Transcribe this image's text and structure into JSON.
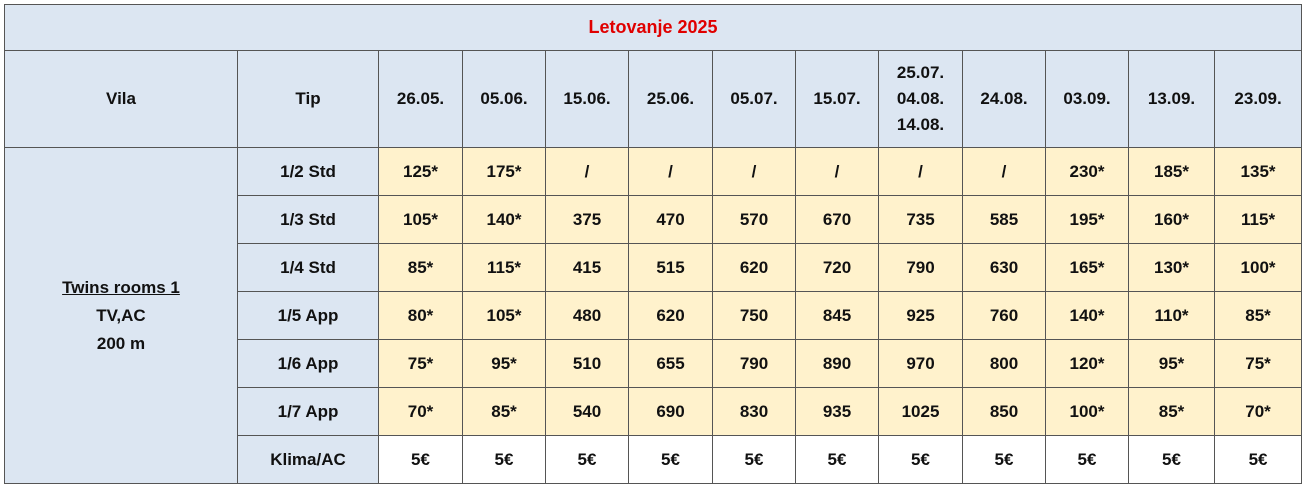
{
  "header": {
    "title": "Letovanje 2025"
  },
  "table": {
    "columns": [
      "Vila",
      "Tip",
      "26.05.",
      "05.06.",
      "15.06.",
      "25.06.",
      "05.07.",
      "15.07.",
      [
        "25.07.",
        "04.08.",
        "14.08."
      ],
      "24.08.",
      "03.09.",
      "13.09.",
      "23.09."
    ],
    "vila": [
      "Twins rooms 1",
      "TV,AC",
      "200 m"
    ],
    "rows": [
      [
        "1/2 Std",
        "125*",
        "175*",
        "/",
        "/",
        "/",
        "/",
        "/",
        "/",
        "230*",
        "185*",
        "135*"
      ],
      [
        "1/3 Std",
        "105*",
        "140*",
        "375",
        "470",
        "570",
        "670",
        "735",
        "585",
        "195*",
        "160*",
        "115*"
      ],
      [
        "1/4 Std",
        "85*",
        "115*",
        "415",
        "515",
        "620",
        "720",
        "790",
        "630",
        "165*",
        "130*",
        "100*"
      ],
      [
        "1/5 App",
        "80*",
        "105*",
        "480",
        "620",
        "750",
        "845",
        "925",
        "760",
        "140*",
        "110*",
        "85*"
      ],
      [
        "1/6 App",
        "75*",
        "95*",
        "510",
        "655",
        "790",
        "890",
        "970",
        "800",
        "120*",
        "95*",
        "75*"
      ],
      [
        "1/7 App",
        "70*",
        "85*",
        "540",
        "690",
        "830",
        "935",
        "1025",
        "850",
        "100*",
        "85*",
        "70*"
      ],
      [
        "Klima/AC",
        "5€",
        "5€",
        "5€",
        "5€",
        "5€",
        "5€",
        "5€",
        "5€",
        "5€",
        "5€",
        "5€"
      ]
    ]
  }
}
